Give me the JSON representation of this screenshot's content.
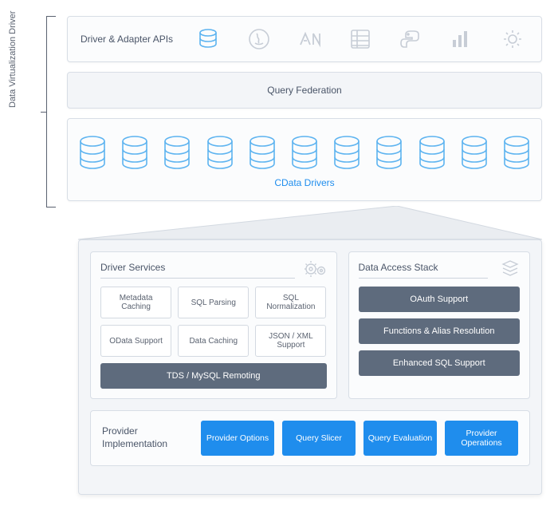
{
  "colors": {
    "bg": "#ffffff",
    "panel_bg": "#f3f5f8",
    "panel_bg_light": "#fbfcfd",
    "border": "#d8dee6",
    "text": "#4a5568",
    "text_muted": "#5a6270",
    "accent_blue": "#1f8ded",
    "slate_dark": "#5e6b7d",
    "slate_text": "#ffffff",
    "icon_gray": "#c7cdd6",
    "icon_blue": "#5cb3f0"
  },
  "vertical_label": "Data Virtualization Driver",
  "top": {
    "apis_label": "Driver & Adapter APIs",
    "federation_label": "Query Federation",
    "cdata_label": "CData Drivers",
    "api_icons": [
      "database",
      "java",
      "dotnet",
      "table",
      "python",
      "chart",
      "gear"
    ],
    "db_count": 11
  },
  "driver_services": {
    "title": "Driver Services",
    "cells": [
      "Metadata Caching",
      "SQL Parsing",
      "SQL Normalization",
      "OData Support",
      "Data Caching",
      "JSON / XML Support"
    ],
    "bar": "TDS / MySQL Remoting"
  },
  "data_access": {
    "title": "Data Access Stack",
    "bars": [
      "OAuth Support",
      "Functions & Alias Resolution",
      "Enhanced SQL Support"
    ]
  },
  "provider": {
    "title": "Provider Implementation",
    "buttons": [
      "Provider Options",
      "Query Slicer",
      "Query Evaluation",
      "Provider Operations"
    ]
  }
}
